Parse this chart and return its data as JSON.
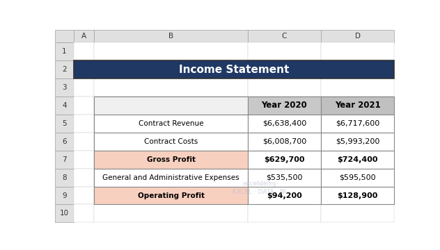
{
  "title": "Income Statement",
  "title_bg": "#1F3864",
  "title_text_color": "#FFFFFF",
  "headers": [
    "Year 2020",
    "Year 2021"
  ],
  "rows": [
    {
      "label": "Contract Revenue",
      "val2020": "$6,638,400",
      "val2021": "$6,717,600",
      "bold": false,
      "bg": "#FFFFFF"
    },
    {
      "label": "Contract Costs",
      "val2020": "$6,008,700",
      "val2021": "$5,993,200",
      "bold": false,
      "bg": "#FFFFFF"
    },
    {
      "label": "Gross Profit",
      "val2020": "$629,700",
      "val2021": "$724,400",
      "bold": true,
      "bg": "#F8D0C0"
    },
    {
      "label": "General and Administrative Expenses",
      "val2020": "$535,500",
      "val2021": "$595,500",
      "bold": false,
      "bg": "#FFFFFF"
    },
    {
      "label": "Operating Profit",
      "val2020": "$94,200",
      "val2021": "$128,900",
      "bold": true,
      "bg": "#F8D0C0"
    }
  ],
  "excel_col_letters": [
    "A",
    "B",
    "C",
    "D"
  ],
  "excel_row_nums": [
    "1",
    "2",
    "3",
    "4",
    "5",
    "6",
    "7",
    "8",
    "9",
    "10"
  ],
  "col_header_bg": "#E0E0E0",
  "row_header_bg": "#E0E0E0",
  "watermark_text": "exceldemy\nEXCEL · DATA · BI",
  "watermark_color": "#B0B8CC"
}
